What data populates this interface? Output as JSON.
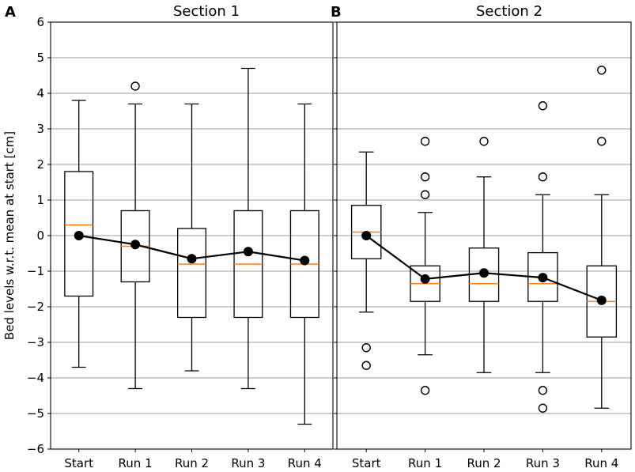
{
  "chart_data": [
    {
      "type": "box",
      "panel_letter": "A",
      "title": "Section 1",
      "ylabel": "Bed levels w.r.t. mean at start [cm]",
      "ylim": [
        -6,
        6
      ],
      "yticks": [
        -6,
        -5,
        -4,
        -3,
        -2,
        -1,
        0,
        1,
        2,
        3,
        4,
        5,
        6
      ],
      "categories": [
        "Start",
        "Run 1",
        "Run 2",
        "Run 3",
        "Run 4"
      ],
      "boxes": [
        {
          "whislo": -3.7,
          "q1": -1.7,
          "med": 0.3,
          "q3": 1.8,
          "whishi": 3.8,
          "fliers": []
        },
        {
          "whislo": -4.3,
          "q1": -1.3,
          "med": -0.3,
          "q3": 0.7,
          "whishi": 3.7,
          "fliers": [
            4.2
          ]
        },
        {
          "whislo": -3.8,
          "q1": -2.3,
          "med": -0.8,
          "q3": 0.2,
          "whishi": 3.7,
          "fliers": []
        },
        {
          "whislo": -4.3,
          "q1": -2.3,
          "med": -0.8,
          "q3": 0.7,
          "whishi": 4.7,
          "fliers": []
        },
        {
          "whislo": -5.3,
          "q1": -2.3,
          "med": -0.8,
          "q3": 0.7,
          "whishi": 3.7,
          "fliers": []
        }
      ],
      "means": [
        0.0,
        -0.25,
        -0.65,
        -0.45,
        -0.7
      ]
    },
    {
      "type": "box",
      "panel_letter": "B",
      "title": "Section 2",
      "ylabel": "",
      "ylim": [
        -6,
        6
      ],
      "yticks": [
        -6,
        -5,
        -4,
        -3,
        -2,
        -1,
        0,
        1,
        2,
        3,
        4,
        5,
        6
      ],
      "categories": [
        "Start",
        "Run 1",
        "Run 2",
        "Run 3",
        "Run 4"
      ],
      "boxes": [
        {
          "whislo": -2.15,
          "q1": -0.65,
          "med": 0.1,
          "q3": 0.85,
          "whishi": 2.35,
          "fliers": [
            -3.15,
            -3.65
          ]
        },
        {
          "whislo": -3.35,
          "q1": -1.85,
          "med": -1.35,
          "q3": -0.85,
          "whishi": 0.65,
          "fliers": [
            2.65,
            1.65,
            1.15,
            -4.35
          ]
        },
        {
          "whislo": -3.85,
          "q1": -1.85,
          "med": -1.35,
          "q3": -0.35,
          "whishi": 1.65,
          "fliers": [
            2.65
          ]
        },
        {
          "whislo": -3.85,
          "q1": -1.85,
          "med": -1.35,
          "q3": -0.48,
          "whishi": 1.15,
          "fliers": [
            3.65,
            1.65,
            -4.35,
            -4.85
          ]
        },
        {
          "whislo": -4.85,
          "q1": -2.85,
          "med": -1.85,
          "q3": -0.85,
          "whishi": 1.15,
          "fliers": [
            4.65,
            2.65
          ]
        }
      ],
      "means": [
        0.0,
        -1.22,
        -1.05,
        -1.18,
        -1.82
      ]
    }
  ],
  "colors": {
    "median": "#ff7f0e",
    "grid": "#b0b0b0",
    "mean": "#000000"
  }
}
